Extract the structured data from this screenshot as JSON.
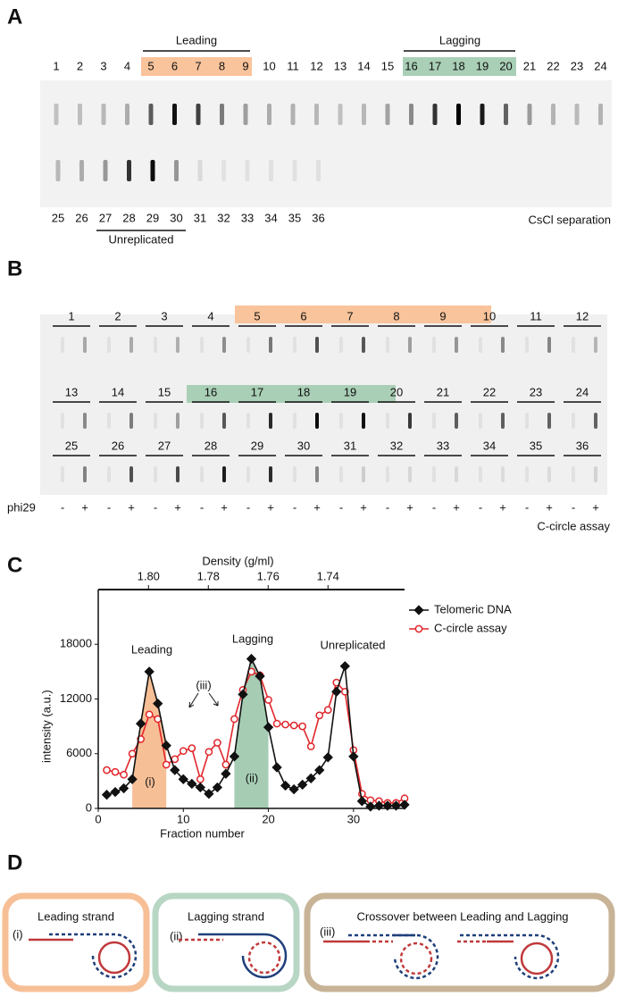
{
  "panel_a": {
    "label": "A",
    "leading": "Leading",
    "lagging": "Lagging",
    "top_lanes": [
      "1",
      "2",
      "3",
      "4",
      "5",
      "6",
      "7",
      "8",
      "9",
      "10",
      "11",
      "12",
      "13",
      "14",
      "15",
      "16",
      "17",
      "18",
      "19",
      "20",
      "21",
      "22",
      "23",
      "24"
    ],
    "bottom_lanes": [
      "25",
      "26",
      "27",
      "28",
      "29",
      "30",
      "31",
      "32",
      "33",
      "34",
      "35",
      "36"
    ],
    "unreplicated": "Unreplicated",
    "caption": "CsCl separation"
  },
  "panel_b": {
    "label": "B",
    "lanes": [
      "1",
      "2",
      "3",
      "4",
      "5",
      "6",
      "7",
      "8",
      "9",
      "10",
      "11",
      "12",
      "13",
      "14",
      "15",
      "16",
      "17",
      "18",
      "19",
      "20",
      "21",
      "22",
      "23",
      "24",
      "25",
      "26",
      "27",
      "28",
      "29",
      "30",
      "31",
      "32",
      "33",
      "34",
      "35",
      "36"
    ],
    "phi29": "phi29",
    "minus": "-",
    "plus": "+",
    "caption": "C-circle assay"
  },
  "chart_data": {
    "type": "line",
    "panel_label": "C",
    "xlabel": "Fraction number",
    "ylabel": "intensity (a.u.)",
    "x2label": "Density (g/ml)",
    "x": [
      1,
      2,
      3,
      4,
      5,
      6,
      7,
      8,
      9,
      10,
      11,
      12,
      13,
      14,
      15,
      16,
      17,
      18,
      19,
      20,
      21,
      22,
      23,
      24,
      25,
      26,
      27,
      28,
      29,
      30,
      31,
      32,
      33,
      34,
      35,
      36
    ],
    "series": [
      {
        "name": "Telomeric DNA",
        "color": "#111111",
        "marker": "diamond",
        "values": [
          1500,
          1800,
          2200,
          3200,
          9300,
          15000,
          11500,
          6900,
          4200,
          3200,
          2700,
          2300,
          1600,
          2300,
          3800,
          5700,
          12500,
          16400,
          14500,
          8900,
          4500,
          2500,
          2100,
          2600,
          3300,
          4200,
          5600,
          12800,
          15600,
          5700,
          800,
          200,
          300,
          300,
          300,
          400
        ]
      },
      {
        "name": "C-circle assay",
        "color": "#e0262b",
        "marker": "circle",
        "values": [
          4200,
          4000,
          3700,
          6000,
          7600,
          10300,
          9800,
          4800,
          5400,
          6300,
          6600,
          3200,
          6200,
          7200,
          4800,
          9800,
          13000,
          15000,
          14600,
          11900,
          9300,
          9200,
          9100,
          9000,
          6800,
          10200,
          10800,
          13800,
          12800,
          6400,
          1600,
          900,
          800,
          600,
          600,
          1100
        ]
      }
    ],
    "xlim": [
      0,
      36
    ],
    "xticks": [
      0,
      10,
      20,
      30
    ],
    "ylim": [
      0,
      24000
    ],
    "yticks": [
      0,
      6000,
      12000,
      18000
    ],
    "x2lim": [
      1.8168,
      1.7144
    ],
    "x2ticks": [
      {
        "value": 1.8,
        "label": "1.80"
      },
      1.78,
      1.76,
      1.74
    ],
    "shaded": [
      {
        "from": 4,
        "to": 8,
        "color": "#f7bf96"
      },
      {
        "from": 16,
        "to": 20,
        "color": "#a6cdb4"
      }
    ],
    "annotations": [
      "Leading",
      "Lagging",
      "Unreplicated",
      "(i)",
      "(ii)",
      "(iii)"
    ],
    "legend": "upper right"
  },
  "panel_d": {
    "label": "D",
    "boxes": [
      {
        "title": "Leading strand",
        "tag": "(i)"
      },
      {
        "title": "Lagging strand",
        "tag": "(ii)"
      },
      {
        "title": "Crossover between Leading and Lagging",
        "tag": "(iii)"
      }
    ]
  }
}
